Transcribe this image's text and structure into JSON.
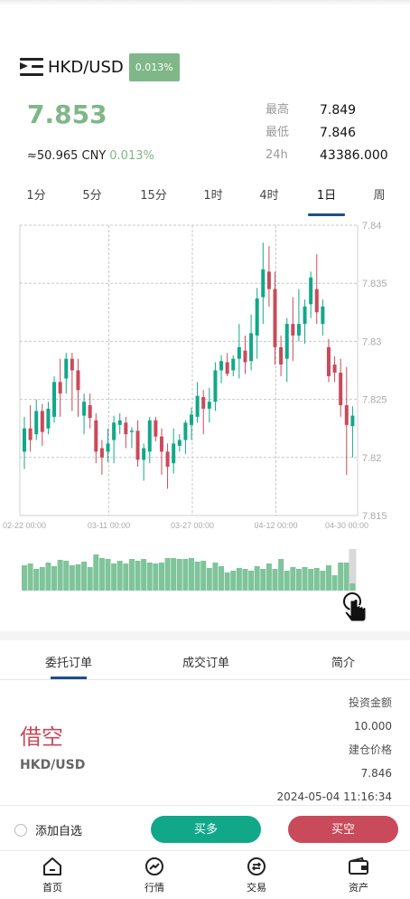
{
  "header": {
    "pair": "HKD/USD",
    "change_badge": "0.013%",
    "price": "7.853",
    "cny_value": "≈50.965 CNY",
    "cny_change": "0.013%"
  },
  "stats": [
    {
      "label": "最高",
      "value": "7.849"
    },
    {
      "label": "最低",
      "value": "7.846"
    },
    {
      "label": "24h",
      "value": "43386.000"
    }
  ],
  "timeframes": [
    "1分",
    "5分",
    "15分",
    "1时",
    "4时",
    "1日",
    "周"
  ],
  "active_timeframe": "1日",
  "chart_data": {
    "type": "candlestick",
    "y_ticks": [
      "7.84",
      "7.835",
      "7.83",
      "7.825",
      "7.82",
      "7.815"
    ],
    "ylim": [
      7.815,
      7.84
    ],
    "x_ticks": [
      "02-22 00:00",
      "03-11 00:00",
      "03-27 00:00",
      "04-12 00:00",
      "04-30 00:00"
    ],
    "up_color": "#11a88a",
    "down_color": "#c94a5a",
    "volume_color": "#7fc49a",
    "candles": [
      [
        7.8205,
        7.8225,
        7.819,
        7.8235
      ],
      [
        7.8225,
        7.8215,
        7.8205,
        7.8245
      ],
      [
        7.822,
        7.824,
        7.8215,
        7.825
      ],
      [
        7.824,
        7.8222,
        7.821,
        7.8246
      ],
      [
        7.8225,
        7.8242,
        7.822,
        7.8248
      ],
      [
        7.8235,
        7.8265,
        7.823,
        7.827
      ],
      [
        7.8265,
        7.8255,
        7.8235,
        7.8285
      ],
      [
        7.8268,
        7.8285,
        7.8255,
        7.829
      ],
      [
        7.8285,
        7.8275,
        7.824,
        7.829
      ],
      [
        7.8275,
        7.8258,
        7.8235,
        7.8285
      ],
      [
        7.8236,
        7.8248,
        7.822,
        7.8255
      ],
      [
        7.8245,
        7.8234,
        7.8225,
        7.8255
      ],
      [
        7.8232,
        7.8205,
        7.8195,
        7.8238
      ],
      [
        7.8208,
        7.82,
        7.8185,
        7.8215
      ],
      [
        7.8205,
        7.8212,
        7.8196,
        7.8225
      ],
      [
        7.8215,
        7.823,
        7.8195,
        7.8236
      ],
      [
        7.8228,
        7.8232,
        7.822,
        7.8238
      ],
      [
        7.823,
        7.822,
        7.8208,
        7.8235
      ],
      [
        7.8222,
        7.8223,
        7.8208,
        7.8226
      ],
      [
        7.8223,
        7.8198,
        7.8192,
        7.8232
      ],
      [
        7.8198,
        7.8208,
        7.818,
        7.8212
      ],
      [
        7.8205,
        7.8232,
        7.8195,
        7.8235
      ],
      [
        7.8232,
        7.8218,
        7.8214,
        7.8235
      ],
      [
        7.8218,
        7.8205,
        7.8185,
        7.8225
      ],
      [
        7.8205,
        7.8192,
        7.8173,
        7.8212
      ],
      [
        7.8195,
        7.8212,
        7.8186,
        7.8225
      ],
      [
        7.821,
        7.8215,
        7.8205,
        7.822
      ],
      [
        7.8215,
        7.823,
        7.8203,
        7.8232
      ],
      [
        7.8228,
        7.8237,
        7.8215,
        7.8243
      ],
      [
        7.8235,
        7.8253,
        7.823,
        7.8265
      ],
      [
        7.8252,
        7.8242,
        7.822,
        7.8258
      ],
      [
        7.8242,
        7.8248,
        7.823,
        7.826
      ],
      [
        7.8248,
        7.8275,
        7.824,
        7.8282
      ],
      [
        7.8275,
        7.8283,
        7.8264,
        7.8288
      ],
      [
        7.8282,
        7.8272,
        7.827,
        7.829
      ],
      [
        7.8275,
        7.8285,
        7.827,
        7.8288
      ],
      [
        7.8285,
        7.8295,
        7.8268,
        7.8315
      ],
      [
        7.8292,
        7.8282,
        7.8272,
        7.8305
      ],
      [
        7.8283,
        7.8307,
        7.8275,
        7.8323
      ],
      [
        7.8305,
        7.8337,
        7.8285,
        7.8346
      ],
      [
        7.8338,
        7.8362,
        7.8315,
        7.8385
      ],
      [
        7.836,
        7.8345,
        7.833,
        7.8382
      ],
      [
        7.8345,
        7.8295,
        7.828,
        7.836
      ],
      [
        7.8295,
        7.828,
        7.827,
        7.8305
      ],
      [
        7.8285,
        7.8315,
        7.8265,
        7.832
      ],
      [
        7.8315,
        7.8305,
        7.8283,
        7.8338
      ],
      [
        7.8305,
        7.8315,
        7.83,
        7.8345
      ],
      [
        7.8315,
        7.833,
        7.8298,
        7.8336
      ],
      [
        7.8332,
        7.8355,
        7.832,
        7.836
      ],
      [
        7.8345,
        7.8325,
        7.8315,
        7.8375
      ],
      [
        7.8315,
        7.833,
        7.8305,
        7.8336
      ],
      [
        7.8295,
        7.827,
        7.8265,
        7.8302
      ],
      [
        7.828,
        7.8273,
        7.8265,
        7.8287
      ],
      [
        7.8273,
        7.8245,
        7.8235,
        7.8285
      ],
      [
        7.8245,
        7.8228,
        7.8185,
        7.8278
      ],
      [
        7.8227,
        7.8236,
        7.82,
        7.8244
      ]
    ],
    "volume": [
      28,
      30,
      24,
      26,
      31,
      27,
      34,
      33,
      28,
      29,
      32,
      26,
      40,
      36,
      35,
      30,
      33,
      30,
      35,
      33,
      35,
      31,
      30,
      31,
      36,
      36,
      35,
      35,
      36,
      32,
      33,
      25,
      31,
      27,
      20,
      22,
      25,
      24,
      22,
      27,
      24,
      30,
      24,
      35,
      22,
      26,
      24,
      26,
      24,
      25,
      22,
      28,
      17,
      31,
      31,
      8
    ],
    "selected_index": 55
  },
  "order_tabs": [
    "委托订单",
    "成交订单",
    "简介"
  ],
  "order": {
    "type": "借空",
    "pair": "HKD/USD",
    "invest_label": "投资金额",
    "invest_value": "10.000",
    "open_price_label": "建仓价格",
    "open_price_value": "7.846",
    "time": "2024-05-04 11:16:34"
  },
  "actions": {
    "favorite": "添加自选",
    "buy_long": "买多",
    "sell_short": "买空"
  },
  "nav": [
    {
      "label": "首页",
      "icon": "home-icon"
    },
    {
      "label": "行情",
      "icon": "chart-icon"
    },
    {
      "label": "交易",
      "icon": "exchange-icon"
    },
    {
      "label": "资产",
      "icon": "wallet-icon"
    }
  ]
}
